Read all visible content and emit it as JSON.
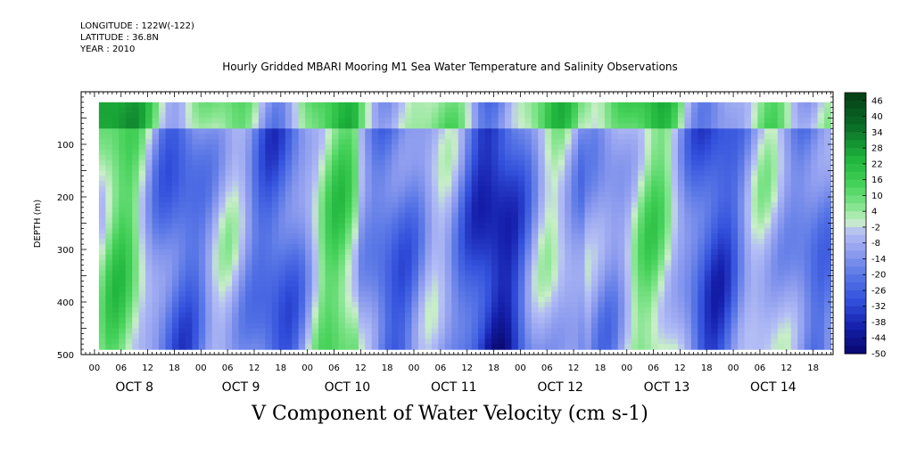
{
  "header": {
    "longitude": "LONGITUDE : 122W(-122)",
    "latitude": "LATITUDE : 36.8N",
    "year": "YEAR : 2010",
    "title": "Hourly Gridded MBARI Mooring M1 Sea Water Temperature and Salinity Observations"
  },
  "chart_data": {
    "type": "heatmap",
    "title": "Hourly Gridded MBARI Mooring M1 Sea Water Temperature and Salinity Observations",
    "xlabel": "V Component of Water Velocity (cm s-1)",
    "ylabel": "DEPTH (m)",
    "x_hour_ticks": [
      "00",
      "06",
      "12",
      "18",
      "00",
      "06",
      "12",
      "18",
      "00",
      "06",
      "12",
      "18",
      "00",
      "06",
      "12",
      "18",
      "00",
      "06",
      "12",
      "18",
      "00",
      "06",
      "12",
      "18",
      "00",
      "06",
      "12",
      "18"
    ],
    "day_labels": [
      "OCT  8",
      "OCT  9",
      "OCT 10",
      "OCT 11",
      "OCT 12",
      "OCT 13",
      "OCT 14"
    ],
    "y_ticks": [
      100,
      200,
      300,
      400,
      500
    ],
    "y_tick_labels": [
      "100",
      "200",
      "300",
      "400",
      "500"
    ],
    "ylim": [
      500,
      0
    ],
    "data_depth_range": [
      20,
      485
    ],
    "colorbar_labels": [
      "46",
      "40",
      "34",
      "28",
      "22",
      "16",
      "10",
      "4",
      "-2",
      "-8",
      "-14",
      "-20",
      "-26",
      "-32",
      "-38",
      "-44",
      "-50"
    ],
    "colorbar_range": [
      -50,
      49
    ],
    "colors": {
      "strong_negative": "#0a0a7a",
      "negative": "#3a5ed8",
      "weak_negative": "#a6b0ef",
      "near_zero": "#c8eec8",
      "weak_positive": "#6fe07a",
      "positive": "#22c03a",
      "strong_positive": "#0a4a1a"
    }
  }
}
